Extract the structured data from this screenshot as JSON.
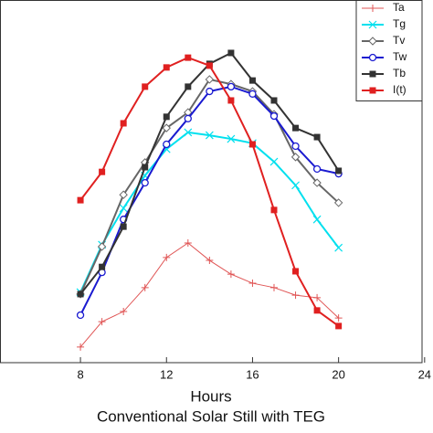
{
  "chart_data": {
    "type": "line",
    "xlabel": "Hours",
    "title": "Conventional Solar Still with TEG",
    "x": [
      8,
      9,
      10,
      11,
      12,
      13,
      14,
      15,
      16,
      17,
      18,
      19,
      20
    ],
    "xlim": [
      4.26,
      23.88
    ],
    "xticks": [
      8,
      12,
      16,
      20,
      24
    ],
    "ylim": [
      0,
      100
    ],
    "legend": "upper right",
    "series": [
      {
        "name": "Ta",
        "color": "#e05555",
        "marker": "plus",
        "values": [
          4.3,
          11.3,
          14.1,
          20.7,
          29.0,
          33.0,
          28.2,
          24.4,
          21.9,
          20.7,
          18.6,
          17.9,
          12.3
        ]
      },
      {
        "name": "Tg",
        "color": "#00e0ee",
        "marker": "x",
        "values": [
          19.4,
          32.5,
          42.6,
          51.6,
          58.9,
          63.5,
          62.7,
          61.7,
          60.5,
          55.4,
          48.9,
          39.5,
          31.7
        ]
      },
      {
        "name": "Tv",
        "color": "#666666",
        "marker": "diamond",
        "values": [
          18.9,
          32.0,
          46.3,
          55.2,
          64.7,
          69.0,
          78.1,
          76.8,
          74.8,
          68.5,
          56.7,
          49.6,
          44.1
        ]
      },
      {
        "name": "Tw",
        "color": "#1a1ad0",
        "marker": "circle",
        "values": [
          13.1,
          24.9,
          39.5,
          49.6,
          60.2,
          67.3,
          74.8,
          76.1,
          74.1,
          68.0,
          59.7,
          53.4,
          52.1
        ]
      },
      {
        "name": "Tb",
        "color": "#333333",
        "marker": "square",
        "values": [
          18.9,
          26.4,
          37.5,
          53.9,
          67.8,
          76.1,
          82.4,
          85.4,
          77.8,
          72.3,
          64.7,
          62.2,
          52.9
        ]
      },
      {
        "name": "I(t)",
        "color": "#e02020",
        "marker": "square",
        "values": [
          44.8,
          52.6,
          66.0,
          76.1,
          81.4,
          84.1,
          81.9,
          72.3,
          60.2,
          42.1,
          25.2,
          14.4,
          10.1
        ]
      }
    ]
  }
}
